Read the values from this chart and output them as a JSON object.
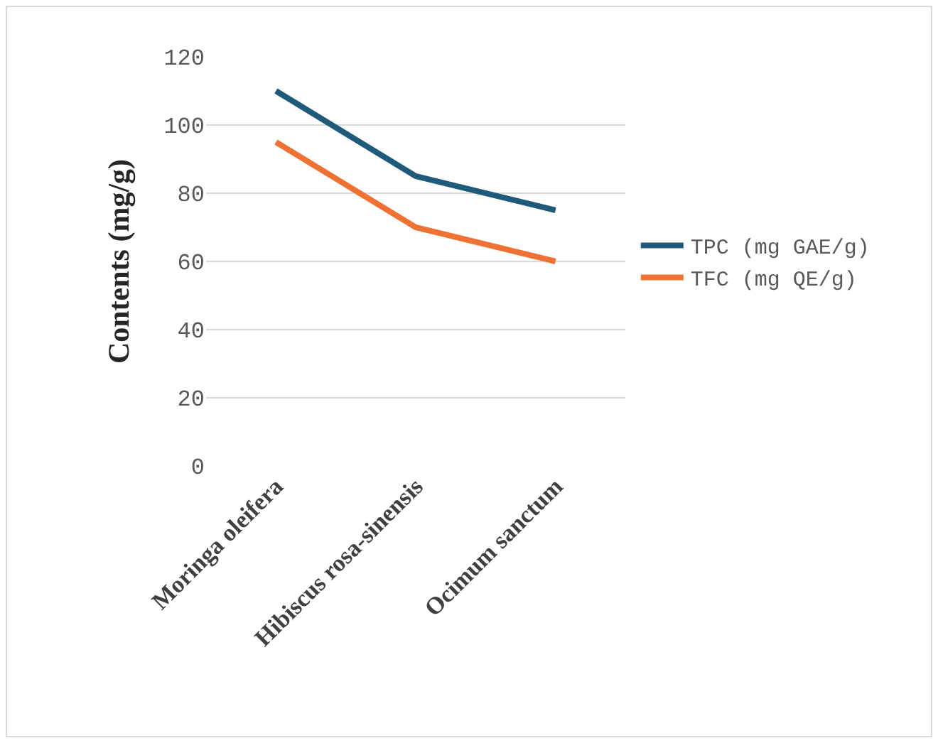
{
  "chart_data": {
    "type": "line",
    "ylabel": "Contents (mg/g)",
    "categories": [
      "Moringa oleifera",
      "Hibiscus rosa-sinensis",
      "Ocimum sanctum"
    ],
    "series": [
      {
        "name": "TPC (mg GAE/g)",
        "color": "#1f5a7a",
        "values": [
          110,
          85,
          75
        ]
      },
      {
        "name": "TFC (mg QE/g)",
        "color": "#ed7233",
        "values": [
          95,
          70,
          60
        ]
      }
    ],
    "ylim": [
      0,
      120
    ],
    "yticks": [
      0,
      20,
      40,
      60,
      80,
      100,
      120
    ],
    "grid": "y",
    "legend": "right",
    "marker": "none",
    "line_style": "solid"
  }
}
